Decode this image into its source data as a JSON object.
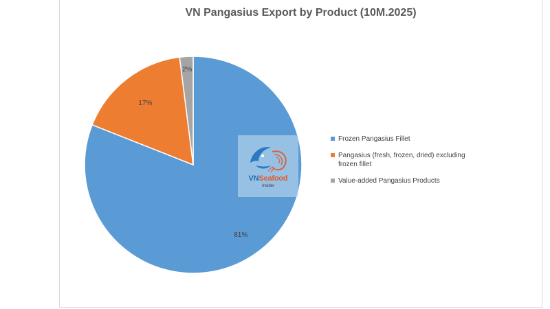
{
  "chart_data": {
    "type": "pie",
    "title": "VN Pangasius Export by Product (10M.2025)",
    "slices": [
      {
        "label": "Frozen Pangasius Fillet",
        "value": 81,
        "value_label": "81%",
        "color": "#5b9bd5"
      },
      {
        "label": "Pangasius (fresh, frozen, dried) excluding frozen fillet",
        "value": 17,
        "value_label": "17%",
        "color": "#ed7d31"
      },
      {
        "label": "Value-added Pangasius Products",
        "value": 2,
        "value_label": "2%",
        "color": "#a5a5a5"
      }
    ],
    "legend_position": "right"
  },
  "watermark": {
    "brand_main": "VN",
    "brand_accent": "Seafood",
    "brand_sub": "Insider",
    "icon": "fish-shrimp-logo-icon"
  }
}
